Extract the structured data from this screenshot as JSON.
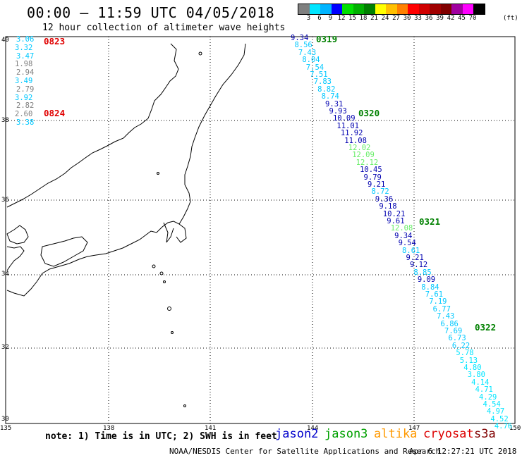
{
  "header": {
    "title": "00:00 – 11:59 UTC 04/05/2018",
    "subtitle": "12 hour collection of altimeter wave heights"
  },
  "legend": {
    "unit": "(ft)",
    "swatches": [
      {
        "label": "3",
        "color": "#7f7f7f"
      },
      {
        "label": "6",
        "color": "#00e5ff"
      },
      {
        "label": "9",
        "color": "#00b4ff"
      },
      {
        "label": "12",
        "color": "#0000ff"
      },
      {
        "label": "15",
        "color": "#00e000"
      },
      {
        "label": "18",
        "color": "#00b000"
      },
      {
        "label": "21",
        "color": "#008000"
      },
      {
        "label": "24",
        "color": "#ffff00"
      },
      {
        "label": "27",
        "color": "#ffc000"
      },
      {
        "label": "30",
        "color": "#ff8000"
      },
      {
        "label": "33",
        "color": "#ff0000"
      },
      {
        "label": "36",
        "color": "#d00000"
      },
      {
        "label": "39",
        "color": "#a00000"
      },
      {
        "label": "42",
        "color": "#800000"
      },
      {
        "label": "45",
        "color": "#a000a0"
      },
      {
        "label": "70",
        "color": "#ff00ff"
      },
      {
        "label": "",
        "color": "#000000"
      }
    ]
  },
  "axes": {
    "lat_labels": [
      "40",
      "38",
      "36",
      "34",
      "32",
      "30"
    ],
    "lon_labels": [
      "135",
      "138",
      "141",
      "144",
      "147",
      "150"
    ]
  },
  "left_track": {
    "heights": [
      {
        "v": "3.06",
        "c": "#00c8ff"
      },
      {
        "v": "3.32",
        "c": "#00c8ff"
      },
      {
        "v": "3.47",
        "c": "#00c8ff"
      },
      {
        "v": "1.98",
        "c": "#7f7f7f"
      },
      {
        "v": "2.94",
        "c": "#7f7f7f"
      },
      {
        "v": "3.49",
        "c": "#00c8ff"
      },
      {
        "v": "2.79",
        "c": "#7f7f7f"
      },
      {
        "v": "3.92",
        "c": "#00c8ff"
      },
      {
        "v": "2.82",
        "c": "#7f7f7f"
      },
      {
        "v": "2.60",
        "c": "#7f7f7f"
      },
      {
        "v": "3.38",
        "c": "#00c8ff"
      }
    ],
    "times": [
      {
        "t": "0823",
        "c": "#e00000"
      },
      {
        "t": "0824",
        "c": "#e00000"
      }
    ]
  },
  "right_track": {
    "heights": [
      {
        "v": "9.34",
        "c": "#0000b0"
      },
      {
        "v": "8.56",
        "c": "#00c8ff"
      },
      {
        "v": "7.43",
        "c": "#00c8ff"
      },
      {
        "v": "8.04",
        "c": "#00c8ff"
      },
      {
        "v": "7.54",
        "c": "#00c8ff"
      },
      {
        "v": "7.51",
        "c": "#00c8ff"
      },
      {
        "v": "7.83",
        "c": "#00c8ff"
      },
      {
        "v": "8.82",
        "c": "#00c8ff"
      },
      {
        "v": "8.74",
        "c": "#00c8ff"
      },
      {
        "v": "9.31",
        "c": "#0000b0"
      },
      {
        "v": "9.93",
        "c": "#0000b0"
      },
      {
        "v": "10.09",
        "c": "#0000b0"
      },
      {
        "v": "11.01",
        "c": "#0000b0"
      },
      {
        "v": "11.92",
        "c": "#0000b0"
      },
      {
        "v": "11.08",
        "c": "#0000b0"
      },
      {
        "v": "12.02",
        "c": "#66ee66"
      },
      {
        "v": "12.09",
        "c": "#66ee66"
      },
      {
        "v": "12.12",
        "c": "#66ee66"
      },
      {
        "v": "10.45",
        "c": "#0000b0"
      },
      {
        "v": "9.79",
        "c": "#0000b0"
      },
      {
        "v": "9.21",
        "c": "#0000b0"
      },
      {
        "v": "8.72",
        "c": "#00c8ff"
      },
      {
        "v": "9.36",
        "c": "#0000b0"
      },
      {
        "v": "9.18",
        "c": "#0000b0"
      },
      {
        "v": "10.21",
        "c": "#0000b0"
      },
      {
        "v": "9.61",
        "c": "#0000b0"
      },
      {
        "v": "12.08",
        "c": "#66ee66"
      },
      {
        "v": "9.34",
        "c": "#0000b0"
      },
      {
        "v": "9.54",
        "c": "#0000b0"
      },
      {
        "v": "8.61",
        "c": "#00c8ff"
      },
      {
        "v": "9.21",
        "c": "#0000b0"
      },
      {
        "v": "9.12",
        "c": "#0000b0"
      },
      {
        "v": "8.85",
        "c": "#00c8ff"
      },
      {
        "v": "9.09",
        "c": "#0000b0"
      },
      {
        "v": "8.84",
        "c": "#00c8ff"
      },
      {
        "v": "7.61",
        "c": "#00c8ff"
      },
      {
        "v": "7.19",
        "c": "#00c8ff"
      },
      {
        "v": "6.77",
        "c": "#00c8ff"
      },
      {
        "v": "7.43",
        "c": "#00c8ff"
      },
      {
        "v": "6.86",
        "c": "#00c8ff"
      },
      {
        "v": "7.69",
        "c": "#00c8ff"
      },
      {
        "v": "6.73",
        "c": "#00c8ff"
      },
      {
        "v": "6.22",
        "c": "#00c8ff"
      },
      {
        "v": "5.78",
        "c": "#00e5ff"
      },
      {
        "v": "5.13",
        "c": "#00e5ff"
      },
      {
        "v": "4.80",
        "c": "#00e5ff"
      },
      {
        "v": "3.80",
        "c": "#00e5ff"
      },
      {
        "v": "4.14",
        "c": "#00e5ff"
      },
      {
        "v": "4.71",
        "c": "#00e5ff"
      },
      {
        "v": "4.29",
        "c": "#00e5ff"
      },
      {
        "v": "4.54",
        "c": "#00e5ff"
      },
      {
        "v": "4.97",
        "c": "#00e5ff"
      },
      {
        "v": "4.52",
        "c": "#00e5ff"
      },
      {
        "v": "4.76",
        "c": "#00e5ff"
      }
    ],
    "times": [
      {
        "t": "0319",
        "c": "#008000"
      },
      {
        "t": "0320",
        "c": "#008000"
      },
      {
        "t": "0321",
        "c": "#008000"
      },
      {
        "t": "0322",
        "c": "#008000"
      }
    ]
  },
  "footer": {
    "note": "note:  1) Time is in UTC;  2) SWH is in feet",
    "satellites": [
      {
        "name": "jason2",
        "color": "#0000cc"
      },
      {
        "name": "jason3",
        "color": "#00a000"
      },
      {
        "name": "altika",
        "color": "#ff9900"
      },
      {
        "name": "cryosat",
        "color": "#dd0000"
      },
      {
        "name": "s3a",
        "color": "#800000"
      }
    ],
    "credit": "NOAA/NESDIS Center for Satellite Applications and Research",
    "stamp": "Apr  6 12:27:21 UTC 2018"
  }
}
